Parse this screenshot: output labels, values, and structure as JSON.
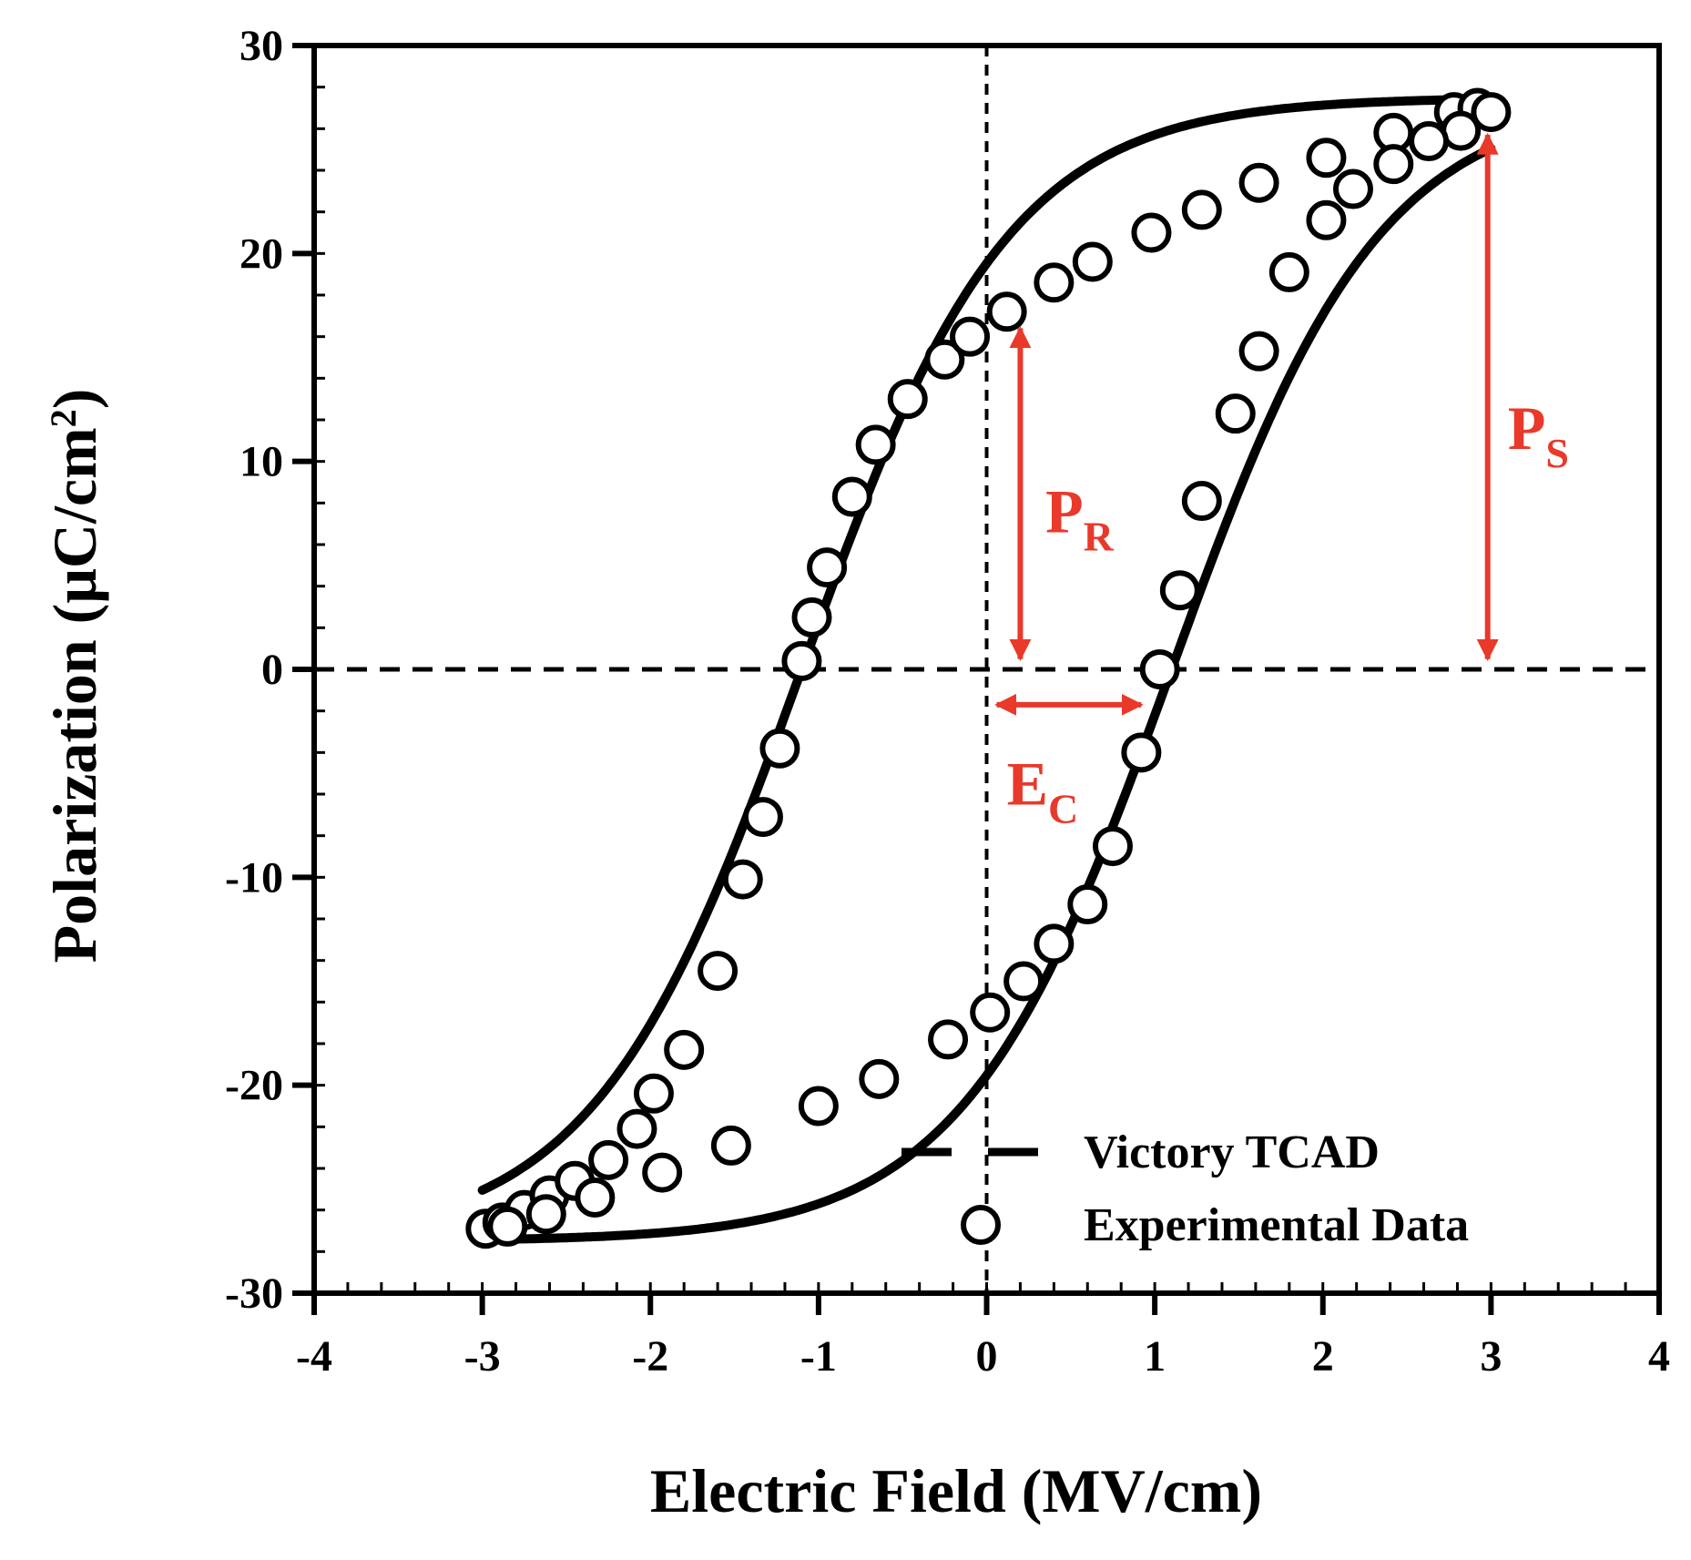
{
  "chart_data": {
    "type": "line",
    "title": "",
    "xlabel": "Electric Field (MV/cm)",
    "ylabel_main": "Polarization (μC/cm",
    "ylabel_sup": "2",
    "ylabel_end": ")",
    "xlim": [
      -4,
      4
    ],
    "ylim": [
      -30,
      30
    ],
    "x_ticks": [
      -4,
      -3,
      -2,
      -1,
      0,
      1,
      2,
      3,
      4
    ],
    "y_ticks": [
      -30,
      -20,
      -10,
      0,
      10,
      20,
      30
    ],
    "x_tick_labels": [
      "-4",
      "-3",
      "-2",
      "-1",
      "0",
      "1",
      "2",
      "3",
      "4"
    ],
    "y_tick_labels": [
      "-30",
      "-20",
      "-10",
      "0",
      "10",
      "20",
      "30"
    ],
    "reference_lines": {
      "x": 0,
      "y": 0
    },
    "series": [
      {
        "name": "Victory TCAD",
        "kind": "line",
        "model": {
          "Ps": 27.5,
          "Ec": 1.1,
          "delta": 0.62,
          "x_range": [
            -3,
            3
          ]
        }
      },
      {
        "name": "Experimental Data",
        "kind": "markers",
        "points": [
          [
            -2.98,
            -26.9
          ],
          [
            -2.88,
            -26.6
          ],
          [
            -2.75,
            -26.0
          ],
          [
            -2.6,
            -25.3
          ],
          [
            -2.45,
            -24.6
          ],
          [
            -2.25,
            -23.6
          ],
          [
            -2.08,
            -22.1
          ],
          [
            -1.98,
            -20.4
          ],
          [
            -1.8,
            -18.3
          ],
          [
            -1.6,
            -14.5
          ],
          [
            -1.45,
            -10.1
          ],
          [
            -1.33,
            -7.1
          ],
          [
            -1.23,
            -3.8
          ],
          [
            -1.1,
            0.4
          ],
          [
            -1.04,
            2.5
          ],
          [
            -0.95,
            4.9
          ],
          [
            -0.8,
            8.3
          ],
          [
            -0.66,
            10.8
          ],
          [
            -0.47,
            13.0
          ],
          [
            -0.25,
            14.9
          ],
          [
            -0.1,
            16.0
          ],
          [
            0.12,
            17.2
          ],
          [
            0.4,
            18.6
          ],
          [
            0.63,
            19.6
          ],
          [
            0.98,
            21.0
          ],
          [
            1.28,
            22.1
          ],
          [
            1.62,
            23.4
          ],
          [
            2.02,
            24.6
          ],
          [
            2.42,
            25.8
          ],
          [
            2.78,
            26.8
          ],
          [
            2.92,
            27.0
          ],
          [
            3.0,
            26.8
          ],
          [
            2.82,
            25.9
          ],
          [
            2.63,
            25.4
          ],
          [
            2.42,
            24.3
          ],
          [
            2.18,
            23.1
          ],
          [
            2.02,
            21.6
          ],
          [
            1.8,
            19.1
          ],
          [
            1.62,
            15.3
          ],
          [
            1.48,
            12.3
          ],
          [
            1.28,
            8.1
          ],
          [
            1.15,
            3.8
          ],
          [
            1.03,
            0.0
          ],
          [
            0.92,
            -4.0
          ],
          [
            0.75,
            -8.5
          ],
          [
            0.6,
            -11.3
          ],
          [
            0.4,
            -13.2
          ],
          [
            0.22,
            -15.0
          ],
          [
            0.02,
            -16.5
          ],
          [
            -0.23,
            -17.8
          ],
          [
            -0.64,
            -19.7
          ],
          [
            -1.0,
            -21.0
          ],
          [
            -1.52,
            -22.9
          ],
          [
            -1.93,
            -24.2
          ],
          [
            -2.33,
            -25.4
          ],
          [
            -2.62,
            -26.2
          ],
          [
            -2.85,
            -26.8
          ]
        ]
      }
    ],
    "legend": {
      "position": "bottom-right",
      "entries": [
        "Victory TCAD",
        "Experimental Data"
      ]
    },
    "annotations": [
      {
        "main": "P",
        "sub": "R",
        "color": "#e8392b",
        "meaning": "remanent polarization, arrow from 0 to ~17 at x=0.2"
      },
      {
        "main": "P",
        "sub": "S",
        "color": "#e8392b",
        "meaning": "saturation polarization, arrow from 0 to ~27 at x=3"
      },
      {
        "main": "E",
        "sub": "C",
        "color": "#e8392b",
        "meaning": "coercive field, arrow from 0 to ~0.9 at y=-1.7"
      }
    ],
    "colors": {
      "annotation": "#e8392b",
      "ink": "#000000",
      "marker_fill": "#ffffff"
    }
  }
}
